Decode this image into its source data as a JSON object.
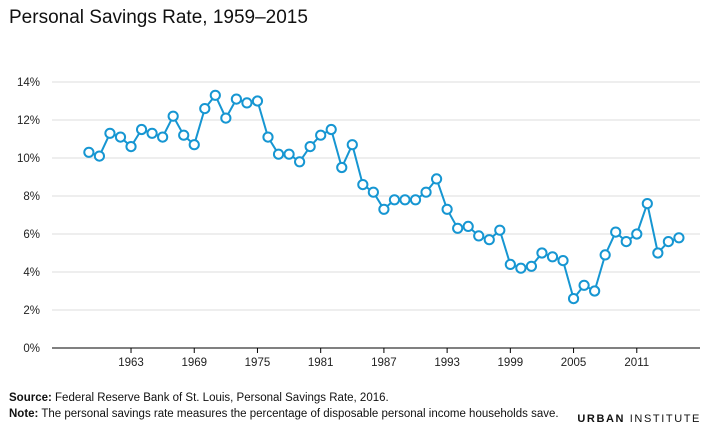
{
  "chart_data": {
    "type": "line",
    "title": "Personal Savings Rate, 1959–2015",
    "xlabel": "",
    "ylabel": "",
    "x": [
      1959,
      1960,
      1961,
      1962,
      1963,
      1964,
      1965,
      1966,
      1967,
      1968,
      1969,
      1970,
      1971,
      1972,
      1973,
      1974,
      1975,
      1976,
      1977,
      1978,
      1979,
      1980,
      1981,
      1982,
      1983,
      1984,
      1985,
      1986,
      1987,
      1988,
      1989,
      1990,
      1991,
      1992,
      1993,
      1994,
      1995,
      1996,
      1997,
      1998,
      1999,
      2000,
      2001,
      2002,
      2003,
      2004,
      2005,
      2006,
      2007,
      2008,
      2009,
      2010,
      2011,
      2012,
      2013,
      2014,
      2015
    ],
    "series": [
      {
        "values": [
          10.3,
          10.1,
          11.3,
          11.1,
          10.6,
          11.5,
          11.3,
          11.1,
          12.2,
          11.2,
          10.7,
          12.6,
          13.3,
          12.1,
          13.1,
          12.9,
          13.0,
          11.1,
          10.2,
          10.2,
          9.8,
          10.6,
          11.2,
          11.5,
          9.5,
          10.7,
          8.6,
          8.2,
          7.3,
          7.8,
          7.8,
          7.8,
          8.2,
          8.9,
          7.3,
          6.3,
          6.4,
          5.9,
          5.7,
          6.2,
          4.4,
          4.2,
          4.3,
          5.0,
          4.8,
          4.6,
          2.6,
          3.3,
          3.0,
          4.9,
          6.1,
          5.6,
          6.0,
          7.6,
          5.0,
          5.6,
          5.8
        ]
      }
    ],
    "x_ticks": [
      1963,
      1969,
      1975,
      1981,
      1987,
      1993,
      1999,
      2005,
      2011
    ],
    "x_tick_labels": [
      "1963",
      "1969",
      "1975",
      "1981",
      "1987",
      "1993",
      "1999",
      "2005",
      "2011"
    ],
    "y_ticks": [
      0,
      2,
      4,
      6,
      8,
      10,
      12,
      14
    ],
    "y_tick_labels": [
      "0%",
      "2%",
      "4%",
      "6%",
      "8%",
      "10%",
      "12%",
      "14%"
    ],
    "xlim": [
      1955.5,
      2017
    ],
    "ylim": [
      0,
      14
    ],
    "grid": true,
    "line_color": "#1696d2"
  },
  "footer": {
    "source_label": "Source:",
    "source_text": " Federal Reserve Bank of St. Louis, Personal Savings Rate, 2016.",
    "note_label": "Note:",
    "note_text": " The personal savings rate measures the percentage of disposable personal income households save."
  },
  "brand": {
    "part1": "URBAN",
    "part2": " INSTITUTE"
  }
}
